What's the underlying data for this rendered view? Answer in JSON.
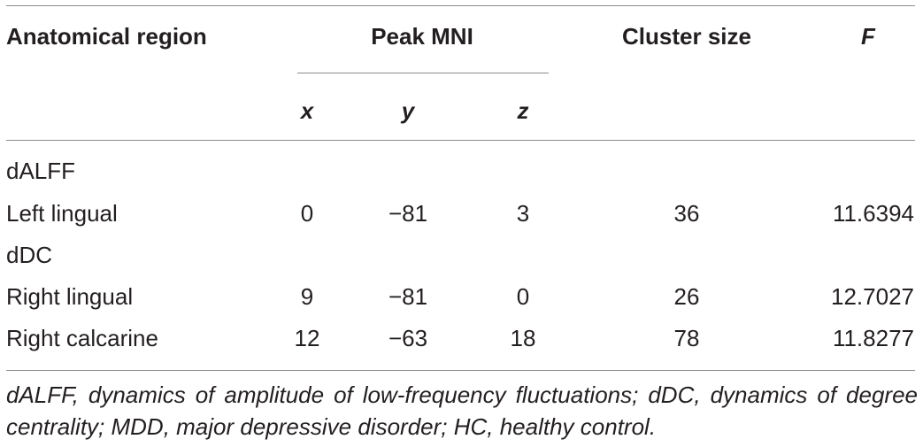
{
  "table": {
    "headers": {
      "region": "Anatomical region",
      "peak": "Peak MNI",
      "cluster": "Cluster size",
      "f": "F",
      "x": "x",
      "y": "y",
      "z": "z"
    },
    "rows": [
      {
        "type": "section",
        "label": "dALFF"
      },
      {
        "type": "data",
        "region": "Left lingual",
        "x": "0",
        "y": "−81",
        "z": "3",
        "cluster": "36",
        "f": "11.6394"
      },
      {
        "type": "section",
        "label": "dDC"
      },
      {
        "type": "data",
        "region": "Right lingual",
        "x": "9",
        "y": "−81",
        "z": "0",
        "cluster": "26",
        "f": "12.7027"
      },
      {
        "type": "data",
        "region": "Right calcarine",
        "x": "12",
        "y": "−63",
        "z": "18",
        "cluster": "78",
        "f": "11.8277"
      }
    ]
  },
  "footnote": "dALFF, dynamics of amplitude of low-frequency fluctuations; dDC, dynamics of degree centrality; MDD, major depressive disorder; HC, healthy control."
}
